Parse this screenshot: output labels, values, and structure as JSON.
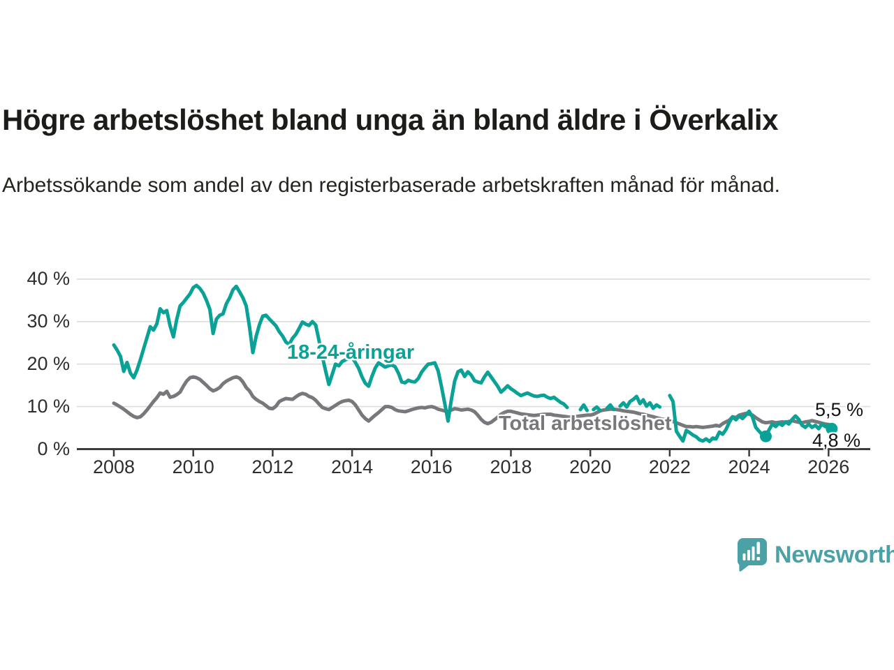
{
  "chart_data": {
    "type": "line",
    "title": "Högre arbetslöshet bland unga än bland äldre i Överkalix",
    "subtitle": "Arbetssökande som andel av den registerbaserade arbetskraften månad för månad.",
    "unit": "%",
    "grid": true,
    "x_axis": {
      "min": 2008,
      "max": 2026.17,
      "ticks": [
        2008,
        2010,
        2012,
        2014,
        2016,
        2018,
        2020,
        2022,
        2024,
        2026
      ],
      "tick_labels": [
        "2008",
        "2010",
        "2012",
        "2014",
        "2016",
        "2018",
        "2020",
        "2022",
        "2024",
        "2026"
      ]
    },
    "y_axis": {
      "ylim": [
        0,
        42
      ],
      "ticks": [
        0,
        10,
        20,
        30,
        40
      ],
      "tick_labels": [
        "0 %",
        "10 %",
        "20 %",
        "30 %",
        "40 %"
      ]
    },
    "series": [
      {
        "name": "18-24-åringar",
        "color": "#0aa296",
        "end_label": "4,8 %",
        "end_value": 4.8,
        "segments": [
          {
            "start": 2008.0,
            "values": [
              24.5,
              23.3,
              21.8,
              18.3,
              20.4,
              17.9,
              16.8,
              18.6,
              21.0,
              23.6,
              26.2,
              28.8,
              28.0,
              29.5,
              33.0,
              32.1,
              32.6,
              29.0,
              26.4,
              30.5,
              33.7,
              34.5,
              35.5,
              36.5,
              38.0,
              38.5,
              37.8,
              36.7,
              35.0,
              32.9,
              27.2,
              30.6,
              31.5,
              31.8,
              34.2,
              35.6,
              37.5,
              38.3,
              37.0,
              35.6,
              33.7,
              28.8,
              22.7,
              26.5,
              29.3,
              31.3,
              31.5,
              30.6,
              29.8,
              29.0,
              27.6,
              26.6,
              25.2,
              24.6,
              26.1,
              27.0,
              28.4,
              29.9,
              29.4,
              29.1,
              30.0,
              29.2,
              25.6,
              21.8,
              18.4,
              15.2,
              17.6,
              20.0,
              19.6,
              20.6,
              21.0,
              21.4,
              21.6,
              20.4,
              19.0,
              17.0,
              15.5,
              14.8,
              17.1,
              19.1,
              20.3,
              19.8,
              19.3,
              19.6,
              19.8,
              19.4,
              17.9,
              15.8,
              15.6,
              16.2,
              15.9,
              15.8,
              16.6,
              18.1,
              19.1,
              20.0,
              20.1,
              20.3,
              18.4,
              14.8,
              10.8,
              6.6,
              11.6,
              16.0,
              18.2,
              18.6,
              17.1,
              18.2,
              17.4,
              16.1,
              15.8,
              15.6,
              17.0,
              18.1,
              17.0,
              15.9,
              14.8,
              13.4,
              14.1,
              14.9,
              14.2,
              13.7,
              13.1,
              12.6,
              12.9,
              13.2,
              12.8,
              12.5,
              12.4,
              12.6,
              12.7,
              12.2,
              11.9,
              12.2,
              11.6,
              11.0,
              10.6,
              9.8
            ]
          },
          {
            "start": 2019.75,
            "values": [
              9.3,
              10.4,
              9.1
            ]
          },
          {
            "start": 2020.08,
            "values": [
              9.3,
              9.9,
              9.1
            ]
          },
          {
            "start": 2020.42,
            "values": [
              9.6,
              10.4,
              9.3
            ]
          },
          {
            "start": 2020.75,
            "values": [
              10.1,
              10.9,
              9.9,
              11.2,
              11.7,
              12.4,
              10.7,
              11.6,
              10.1,
              10.9,
              9.6,
              10.4,
              9.9
            ]
          },
          {
            "start": 2022.0,
            "values": [
              12.6,
              11.2,
              4.2,
              3.0,
              1.9,
              4.4,
              3.9,
              3.3,
              2.9,
              2.2,
              1.9,
              2.4,
              1.8,
              2.6,
              2.4,
              4.0,
              3.5,
              4.6,
              6.3,
              7.6,
              6.9,
              7.8,
              7.2,
              8.0,
              8.9,
              7.6,
              5.1,
              4.2,
              3.4,
              3.0,
              4.5,
              5.9,
              5.3,
              6.1,
              5.6,
              6.4,
              5.9,
              7.0,
              7.8,
              7.0,
              5.6,
              5.1,
              5.9,
              5.1,
              5.6,
              4.8,
              5.9,
              5.3,
              5.6,
              4.8
            ]
          }
        ],
        "dots": [
          [
            2024.42,
            3.0
          ],
          [
            2026.08,
            4.8
          ]
        ]
      },
      {
        "name": "Total arbetslöshet",
        "color": "#77787b",
        "end_label": "5,5 %",
        "end_value": 5.5,
        "segments": [
          {
            "start": 2008.0,
            "values": [
              10.8,
              10.4,
              9.9,
              9.4,
              8.8,
              8.2,
              7.7,
              7.4,
              7.6,
              8.3,
              9.2,
              10.2,
              11.2,
              12.1,
              13.2,
              12.9,
              13.6,
              12.2,
              12.4,
              12.8,
              13.4,
              14.8,
              16.0,
              16.8,
              17.0,
              16.8,
              16.4,
              15.7,
              15.0,
              14.2,
              13.7,
              14.0,
              14.5,
              15.4,
              16.0,
              16.4,
              16.8,
              17.0,
              16.7,
              15.8,
              14.5,
              13.7,
              12.4,
              11.7,
              11.2,
              10.8,
              10.2,
              9.6,
              9.5,
              10.1,
              11.2,
              11.6,
              11.9,
              11.8,
              11.7,
              12.3,
              12.8,
              13.1,
              12.9,
              12.4,
              12.1,
              11.5,
              10.6,
              9.8,
              9.5,
              9.3,
              9.8,
              10.3,
              10.8,
              11.2,
              11.4,
              11.5,
              11.2,
              10.4,
              9.2,
              8.0,
              7.2,
              6.6,
              7.3,
              8.0,
              8.6,
              9.3,
              10.0,
              10.0,
              9.8,
              9.3,
              9.0,
              8.9,
              8.8,
              9.0,
              9.3,
              9.5,
              9.7,
              9.8,
              9.7,
              9.9,
              10.0,
              9.8,
              9.4,
              9.2,
              9.0,
              8.8,
              9.2,
              9.5,
              9.4,
              9.2,
              9.3,
              9.4,
              9.2,
              8.8,
              8.0,
              7.0,
              6.3,
              6.0,
              6.3,
              6.9,
              7.5,
              8.2,
              8.6,
              8.9,
              8.9,
              8.7,
              8.5,
              8.3,
              8.2,
              8.1,
              8.0,
              7.9,
              8.0,
              8.1,
              8.2,
              8.2,
              8.2,
              8.0,
              7.9,
              7.8,
              7.7,
              7.6,
              7.5,
              7.6,
              7.7,
              7.8,
              7.9,
              8.0,
              8.0,
              8.2,
              8.6,
              9.0,
              9.2,
              9.3,
              9.4,
              9.4,
              9.3,
              9.2,
              9.0,
              8.9,
              8.8,
              8.7,
              8.5,
              8.3,
              8.2,
              8.0,
              7.8,
              7.6,
              7.4,
              7.2,
              7.0,
              6.9,
              6.8,
              6.5,
              6.2,
              5.9,
              5.6,
              5.3,
              5.3,
              5.2,
              5.3,
              5.2,
              5.1,
              5.2,
              5.3,
              5.4,
              5.6,
              5.4,
              6.0,
              6.4,
              6.8,
              7.6,
              7.4,
              8.0,
              8.2,
              8.4,
              8.2,
              8.0,
              7.4,
              6.9,
              6.4,
              6.2,
              6.3,
              6.4,
              6.2,
              6.3,
              6.4,
              6.3,
              6.5,
              6.7,
              6.5,
              6.3,
              6.2,
              6.4,
              6.5,
              6.7,
              6.5,
              6.3,
              6.1,
              5.9,
              5.8,
              5.5
            ]
          }
        ],
        "dots": []
      }
    ],
    "colors": {
      "accent_teal": "#0aa296",
      "line_gray": "#77787b",
      "grid": "#dcdcdc",
      "axis": "#3b3b3b",
      "text": "#2e2e2e"
    }
  },
  "footer": {
    "brand": "Newsworthy",
    "brand_color": "#4aa1a6",
    "logo_icon": "speech-bubble-bar-chart"
  }
}
